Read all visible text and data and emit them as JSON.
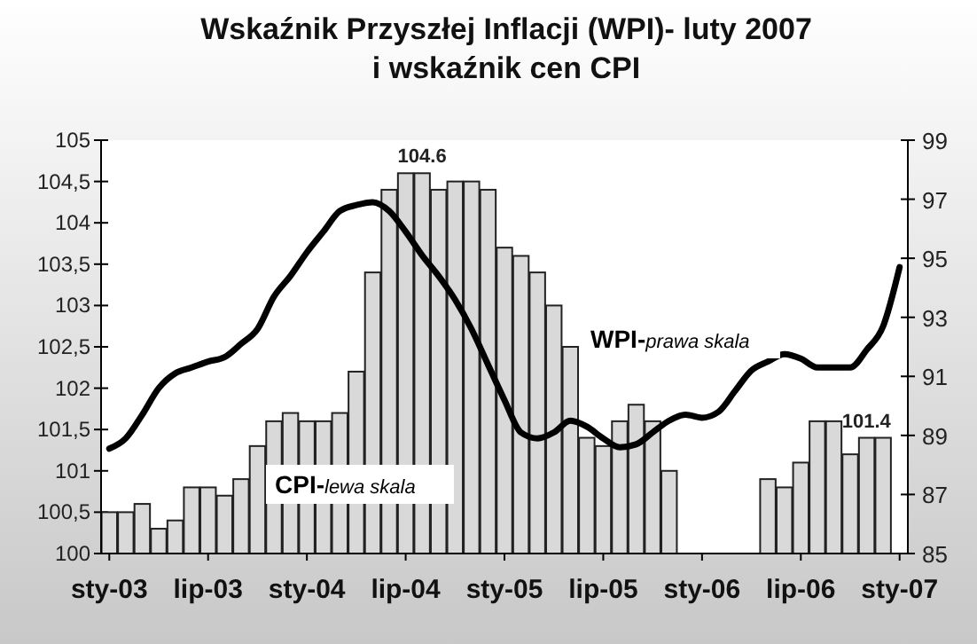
{
  "chart_data": {
    "type": "bar",
    "title": "Wskaźnik Przyszłej Inflacji (WPI)- luty 2007\ni wskaźnik cen CPI",
    "categories": [
      "sty-03",
      null,
      null,
      null,
      null,
      null,
      "lip-03",
      null,
      null,
      null,
      null,
      null,
      "sty-04",
      null,
      null,
      null,
      null,
      null,
      "lip-04",
      null,
      null,
      null,
      null,
      null,
      "sty-05",
      null,
      null,
      null,
      null,
      null,
      "lip-05",
      null,
      null,
      null,
      null,
      null,
      "sty-06",
      null,
      null,
      null,
      null,
      null,
      "lip-06",
      null,
      null,
      null,
      null,
      null,
      "sty-07"
    ],
    "series": [
      {
        "name": "CPI-lewa skala",
        "color": "#d9d9d9",
        "values": [
          100.5,
          100.5,
          100.6,
          100.3,
          100.4,
          100.8,
          100.8,
          100.7,
          100.9,
          101.3,
          101.6,
          101.7,
          101.6,
          101.6,
          101.7,
          102.2,
          103.4,
          104.4,
          104.6,
          104.6,
          104.4,
          104.5,
          104.5,
          104.4,
          103.7,
          103.6,
          103.4,
          103.0,
          102.5,
          101.4,
          101.3,
          101.6,
          101.8,
          101.6,
          101.0,
          null,
          null,
          null,
          null,
          null,
          100.9,
          100.8,
          101.1,
          101.6,
          101.6,
          101.2,
          101.4,
          101.4,
          null
        ],
        "value_labels": [
          null,
          null,
          null,
          null,
          null,
          null,
          null,
          null,
          null,
          null,
          null,
          null,
          null,
          null,
          null,
          null,
          null,
          null,
          null,
          "104.6",
          null,
          null,
          null,
          null,
          null,
          null,
          null,
          null,
          null,
          null,
          null,
          null,
          null,
          null,
          null,
          null,
          null,
          null,
          null,
          null,
          null,
          null,
          null,
          null,
          null,
          null,
          null,
          "101.4",
          null
        ]
      },
      {
        "name": "WPI-prawa skala",
        "type": "line",
        "axis": "y2",
        "color": "#000000",
        "values": [
          88.55,
          88.9,
          89.7,
          90.6,
          91.1,
          91.3,
          91.5,
          91.65,
          92.1,
          92.6,
          93.7,
          94.4,
          95.2,
          95.9,
          96.6,
          96.8,
          96.9,
          96.6,
          95.9,
          95.1,
          94.4,
          93.6,
          92.6,
          91.4,
          90.2,
          89.1,
          88.9,
          89.1,
          89.5,
          89.3,
          88.9,
          88.6,
          88.7,
          89.1,
          89.5,
          89.7,
          89.6,
          89.8,
          90.5,
          91.2,
          91.5,
          91.75,
          91.6,
          91.3,
          91.3,
          91.3,
          91.9,
          92.7,
          94.7
        ]
      }
    ],
    "ylim": [
      100,
      105
    ],
    "yticks": [
      100,
      {
        "value": 100.5,
        "label": "100,5"
      },
      101,
      {
        "value": 101.5,
        "label": "101,5"
      },
      102,
      {
        "value": 102.5,
        "label": "102,5"
      },
      103,
      {
        "value": 103.5,
        "label": "103,5"
      },
      104,
      {
        "value": 104.5,
        "label": "104,5"
      },
      105
    ],
    "y2lim": [
      85,
      99
    ],
    "y2ticks": [
      85,
      87,
      89,
      91,
      93,
      95,
      97,
      99
    ],
    "legend": false,
    "grid": false,
    "marker": "none",
    "line_style": "solid"
  }
}
